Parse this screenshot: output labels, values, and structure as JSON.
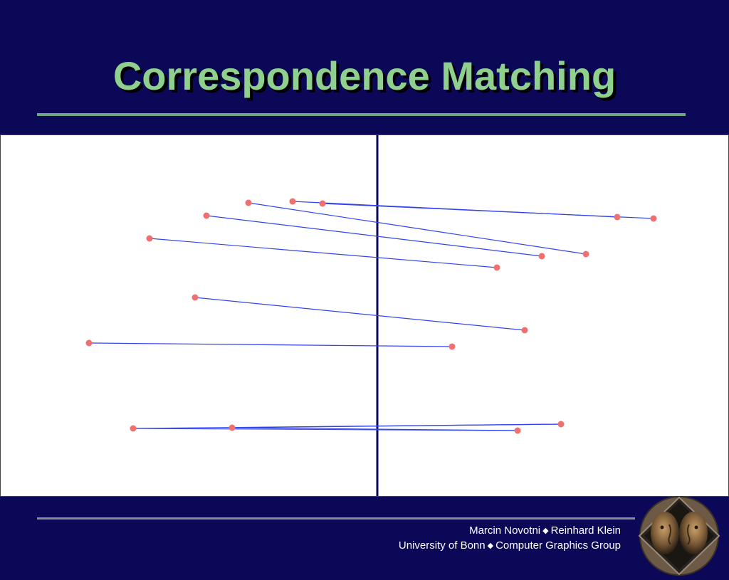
{
  "slide": {
    "title": "Correspondence Matching"
  },
  "colors": {
    "background": "#0b0857",
    "title": "#8fd08f",
    "rule": "#6fa582",
    "match_line": "#3344ee",
    "feature_point": "#f07070",
    "divider": "#0b0857"
  },
  "matches": [
    {
      "left": "feature point",
      "right": "feature point"
    }
  ],
  "footer": {
    "author1": "Marcin Novotni",
    "author2": "Reinhard Klein",
    "affiliation1": "University of Bonn",
    "affiliation2": "Computer Graphics Group",
    "separator": "◆"
  },
  "logo": {
    "icon": "twin-faces-logo-icon"
  }
}
